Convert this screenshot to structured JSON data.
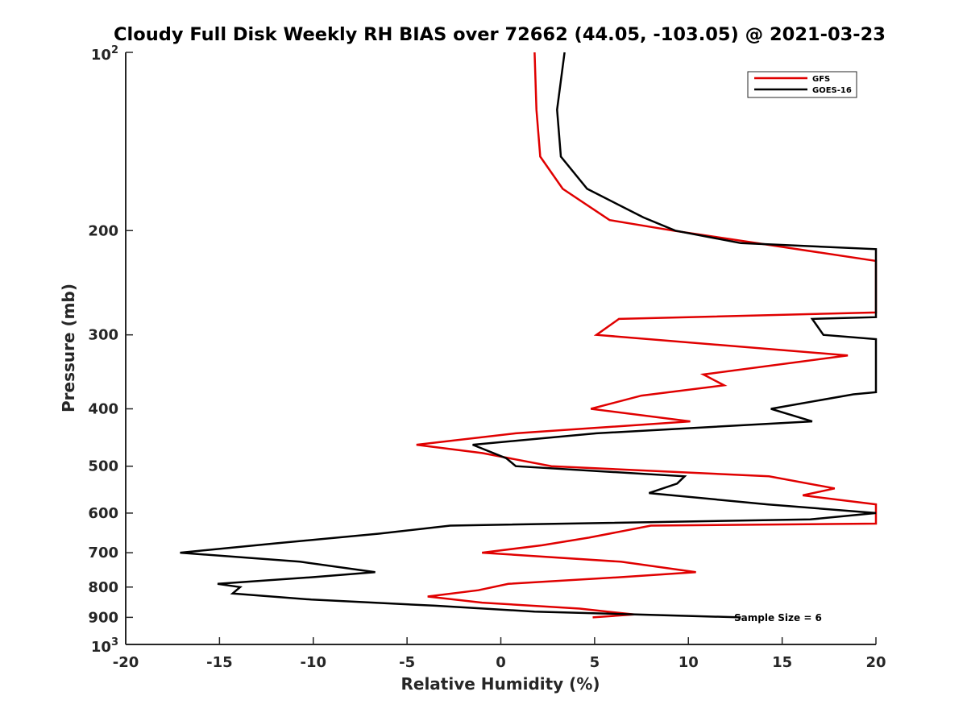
{
  "chart_data": {
    "type": "line",
    "title": "Cloudy Full Disk Weekly RH BIAS over 72662 (44.05, -103.05) @ 2021-03-23",
    "xlabel": "Relative Humidity (%)",
    "ylabel": "Pressure (mb)",
    "xlim": [
      -20,
      20
    ],
    "ylim": [
      100,
      1000
    ],
    "y_scale": "log",
    "y_reversed": true,
    "x_ticks": [
      "-20",
      "-15",
      "-10",
      "-5",
      "0",
      "5",
      "10",
      "15",
      "20"
    ],
    "y_ticks": [
      {
        "value": 100,
        "base": "10",
        "exp": "2"
      },
      {
        "value": 200,
        "label": "200"
      },
      {
        "value": 300,
        "label": "300"
      },
      {
        "value": 400,
        "label": "400"
      },
      {
        "value": 500,
        "label": "500"
      },
      {
        "value": 600,
        "label": "600"
      },
      {
        "value": 700,
        "label": "700"
      },
      {
        "value": 800,
        "label": "800"
      },
      {
        "value": 900,
        "label": "900"
      },
      {
        "value": 1000,
        "base": "10",
        "exp": "3"
      }
    ],
    "grid": false,
    "legend_position": "top-right",
    "annotation": "Sample Size = 6",
    "series": [
      {
        "name": "GFS",
        "color": "#e00000",
        "points": [
          [
            1.8,
            100
          ],
          [
            1.9,
            125
          ],
          [
            2.1,
            150
          ],
          [
            3.3,
            170
          ],
          [
            5.8,
            192
          ],
          [
            9.2,
            200
          ],
          [
            20.0,
            225
          ],
          [
            20.0,
            275
          ],
          [
            6.3,
            282
          ],
          [
            5.1,
            300
          ],
          [
            18.5,
            325
          ],
          [
            10.8,
            350
          ],
          [
            11.9,
            365
          ],
          [
            7.5,
            380
          ],
          [
            4.8,
            400
          ],
          [
            10.1,
            420
          ],
          [
            0.8,
            440
          ],
          [
            -4.5,
            460
          ],
          [
            -1.0,
            475
          ],
          [
            2.7,
            500
          ],
          [
            14.3,
            520
          ],
          [
            17.8,
            545
          ],
          [
            16.1,
            560
          ],
          [
            20.0,
            580
          ],
          [
            20.0,
            625
          ],
          [
            8.0,
            630
          ],
          [
            4.7,
            660
          ],
          [
            2.2,
            680
          ],
          [
            -1.0,
            700
          ],
          [
            6.4,
            725
          ],
          [
            10.4,
            755
          ],
          [
            6.3,
            770
          ],
          [
            0.4,
            790
          ],
          [
            -1.2,
            810
          ],
          [
            -3.9,
            830
          ],
          [
            -1.0,
            850
          ],
          [
            4.2,
            870
          ],
          [
            7.1,
            890
          ],
          [
            4.9,
            900
          ]
        ]
      },
      {
        "name": "GOES-16",
        "color": "#000000",
        "points": [
          [
            3.4,
            100
          ],
          [
            3.0,
            125
          ],
          [
            3.2,
            150
          ],
          [
            4.6,
            170
          ],
          [
            7.6,
            190
          ],
          [
            9.3,
            200
          ],
          [
            12.8,
            210
          ],
          [
            20.0,
            215
          ],
          [
            20.0,
            280
          ],
          [
            16.6,
            282
          ],
          [
            17.2,
            300
          ],
          [
            20.0,
            305
          ],
          [
            20.0,
            375
          ],
          [
            18.8,
            378
          ],
          [
            14.4,
            400
          ],
          [
            16.6,
            420
          ],
          [
            5.1,
            440
          ],
          [
            -1.5,
            460
          ],
          [
            0.3,
            485
          ],
          [
            0.8,
            500
          ],
          [
            9.8,
            520
          ],
          [
            9.4,
            535
          ],
          [
            7.9,
            555
          ],
          [
            14.2,
            580
          ],
          [
            20.0,
            600
          ],
          [
            16.5,
            615
          ],
          [
            -2.7,
            630
          ],
          [
            -6.5,
            650
          ],
          [
            -12.0,
            675
          ],
          [
            -17.1,
            700
          ],
          [
            -10.7,
            725
          ],
          [
            -6.7,
            755
          ],
          [
            -10.1,
            770
          ],
          [
            -15.1,
            790
          ],
          [
            -13.9,
            800
          ],
          [
            -14.3,
            820
          ],
          [
            -10.1,
            840
          ],
          [
            -3.5,
            860
          ],
          [
            1.8,
            880
          ],
          [
            12.8,
            900
          ]
        ]
      }
    ]
  }
}
